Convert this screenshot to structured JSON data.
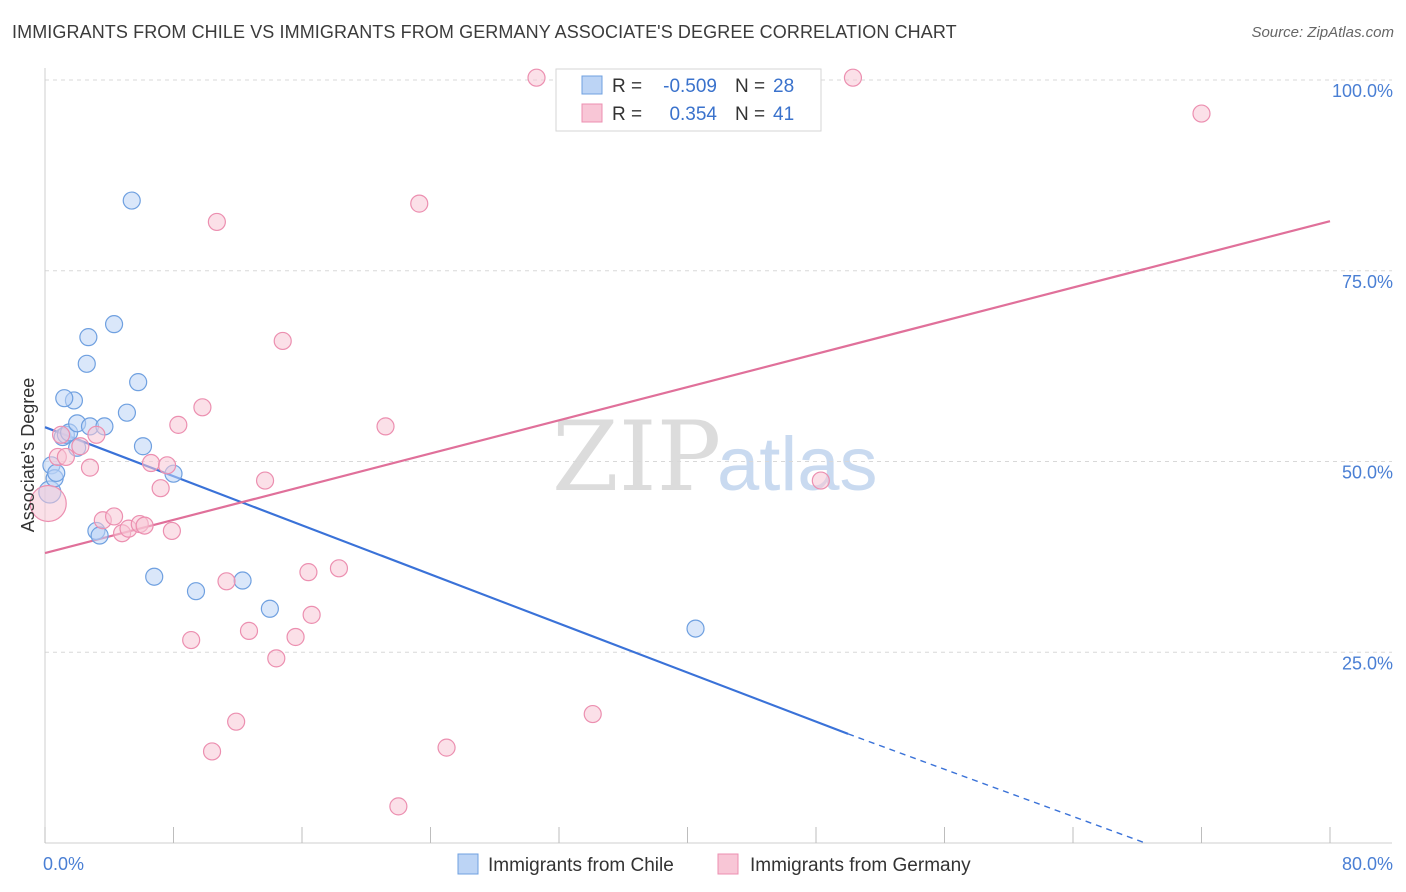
{
  "header": {
    "title": "IMMIGRANTS FROM CHILE VS IMMIGRANTS FROM GERMANY ASSOCIATE'S DEGREE CORRELATION CHART",
    "source": "Source: ZipAtlas.com"
  },
  "watermark": {
    "zip": "ZIP",
    "atlas": "atlas"
  },
  "legend": {
    "rows": [
      {
        "r_label": "R =",
        "r_value": "-0.509",
        "n_label": "N =",
        "n_value": "28"
      },
      {
        "r_label": "R =",
        "r_value": "0.354",
        "n_label": "N =",
        "n_value": "41"
      }
    ]
  },
  "chart_data": {
    "type": "scatter",
    "title": "IMMIGRANTS FROM CHILE VS IMMIGRANTS FROM GERMANY ASSOCIATE'S DEGREE CORRELATION CHART",
    "xlabel": "",
    "ylabel": "Associate's Degree",
    "xlim": [
      0,
      80
    ],
    "ylim": [
      0,
      100
    ],
    "x_tick_labels": [
      "0.0%",
      "80.0%"
    ],
    "y_tick_labels": [
      "100.0%",
      "75.0%",
      "50.0%",
      "25.0%"
    ],
    "y_tick_values": [
      100,
      75,
      50,
      25
    ],
    "series": [
      {
        "name": "Immigrants from Chile",
        "color": "#6fa0e0",
        "fill": "#bcd4f5",
        "line_color": "#3a72d8",
        "R": -0.509,
        "N": 28,
        "trend": {
          "x0": 0,
          "y0": 54.5,
          "x1": 50,
          "y1": 14.3,
          "dash_to_x": 68.5,
          "dash_to_y": 0
        },
        "points": [
          [
            0.3,
            46.0
          ],
          [
            0.4,
            49.5
          ],
          [
            0.6,
            47.8
          ],
          [
            0.7,
            48.5
          ],
          [
            1.1,
            53.2
          ],
          [
            1.3,
            53.5
          ],
          [
            1.5,
            53.8
          ],
          [
            1.8,
            58.0
          ],
          [
            1.2,
            58.3
          ],
          [
            2.0,
            51.8
          ],
          [
            2.0,
            55.0
          ],
          [
            2.6,
            62.8
          ],
          [
            2.7,
            66.3
          ],
          [
            2.8,
            54.6
          ],
          [
            3.2,
            40.9
          ],
          [
            3.4,
            40.3
          ],
          [
            3.7,
            54.6
          ],
          [
            4.3,
            68.0
          ],
          [
            5.1,
            56.4
          ],
          [
            5.4,
            84.2
          ],
          [
            5.8,
            60.4
          ],
          [
            6.1,
            52.0
          ],
          [
            6.8,
            34.9
          ],
          [
            8.0,
            48.4
          ],
          [
            9.4,
            33.0
          ],
          [
            12.3,
            34.4
          ],
          [
            14.0,
            30.7
          ],
          [
            40.5,
            28.1
          ]
        ]
      },
      {
        "name": "Immigrants from Germany",
        "color": "#ec8fb0",
        "fill": "#f8c6d6",
        "line_color": "#e0709a",
        "R": 0.354,
        "N": 41,
        "trend": {
          "x0": 0,
          "y0": 38.0,
          "x1": 80,
          "y1": 81.5
        },
        "points": [
          [
            0.2,
            44.5
          ],
          [
            0.8,
            50.6
          ],
          [
            1.0,
            53.5
          ],
          [
            1.3,
            50.6
          ],
          [
            2.2,
            52.0
          ],
          [
            2.8,
            49.2
          ],
          [
            3.2,
            53.5
          ],
          [
            3.6,
            42.3
          ],
          [
            4.3,
            42.8
          ],
          [
            4.8,
            40.6
          ],
          [
            5.2,
            41.2
          ],
          [
            5.9,
            41.8
          ],
          [
            6.2,
            41.6
          ],
          [
            6.6,
            49.8
          ],
          [
            7.2,
            46.5
          ],
          [
            7.6,
            49.5
          ],
          [
            7.9,
            40.9
          ],
          [
            8.3,
            54.8
          ],
          [
            9.1,
            26.6
          ],
          [
            9.8,
            57.1
          ],
          [
            10.4,
            12.0
          ],
          [
            10.7,
            81.4
          ],
          [
            11.3,
            34.3
          ],
          [
            11.9,
            15.9
          ],
          [
            12.7,
            27.8
          ],
          [
            13.7,
            47.5
          ],
          [
            14.4,
            24.2
          ],
          [
            14.8,
            65.8
          ],
          [
            15.6,
            27.0
          ],
          [
            16.4,
            35.5
          ],
          [
            16.6,
            29.9
          ],
          [
            18.3,
            36.0
          ],
          [
            21.2,
            54.6
          ],
          [
            22.0,
            4.8
          ],
          [
            23.3,
            83.8
          ],
          [
            25.0,
            12.5
          ],
          [
            30.6,
            100.3
          ],
          [
            34.1,
            16.9
          ],
          [
            48.3,
            47.5
          ],
          [
            50.3,
            100.3
          ],
          [
            72.0,
            95.6
          ]
        ]
      }
    ]
  },
  "bottom_legend": {
    "items": [
      {
        "label": "Immigrants from Chile"
      },
      {
        "label": "Immigrants from Germany"
      }
    ]
  }
}
